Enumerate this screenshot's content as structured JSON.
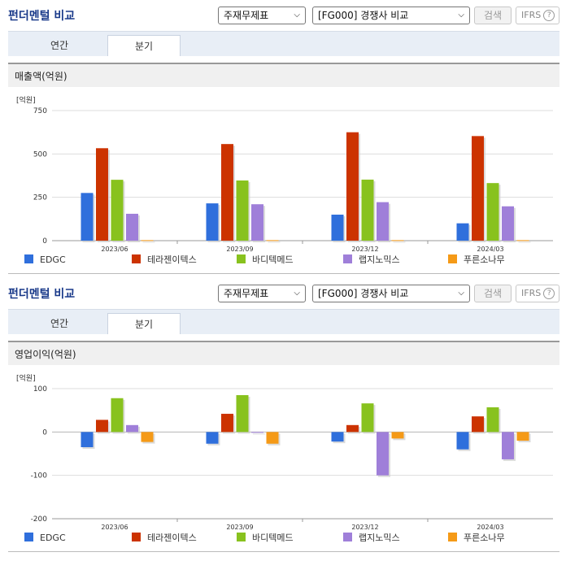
{
  "header": {
    "title": "펀더멘털 비교",
    "select_1": "주재무제표",
    "select_2": "[FG000] 경쟁사 비교",
    "search_button": "검색",
    "ifrs_label": "IFRS",
    "help_icon": "?"
  },
  "tabs": [
    "연간",
    "분기"
  ],
  "active_tab": "분기",
  "colors": {
    "EDGC": "#2f6fdc",
    "테라젠이텍스": "#cc3300",
    "바디텍메드": "#88c21e",
    "랩지노믹스": "#9f7fd9",
    "푸른소나무": "#f59a17"
  },
  "chart_data": [
    {
      "type": "bar",
      "title": "매출액(억원)",
      "unit_label": "[억원]",
      "categories": [
        "2023/06",
        "2023/09",
        "2023/12",
        "2024/03"
      ],
      "ylim": [
        0,
        750
      ],
      "yticks": [
        0,
        250,
        500,
        750
      ],
      "grid": true,
      "legend_position": "bottom",
      "series": [
        {
          "name": "EDGC",
          "values": [
            275,
            215,
            150,
            100
          ]
        },
        {
          "name": "테라젠이텍스",
          "values": [
            533,
            557,
            625,
            603
          ]
        },
        {
          "name": "바디텍메드",
          "values": [
            351,
            347,
            352,
            332
          ]
        },
        {
          "name": "랩지노믹스",
          "values": [
            155,
            210,
            222,
            198
          ]
        },
        {
          "name": "푸른소나무",
          "values": [
            3,
            3,
            3,
            3
          ]
        }
      ]
    },
    {
      "type": "bar",
      "title": "영업이익(억원)",
      "unit_label": "[억원]",
      "categories": [
        "2023/06",
        "2023/09",
        "2023/12",
        "2024/03"
      ],
      "ylim": [
        -200,
        100
      ],
      "yticks": [
        -200,
        -100,
        0,
        100
      ],
      "grid": true,
      "legend_position": "bottom",
      "series": [
        {
          "name": "EDGC",
          "values": [
            -35,
            -27,
            -22,
            -40
          ]
        },
        {
          "name": "테라젠이텍스",
          "values": [
            28,
            42,
            16,
            36
          ]
        },
        {
          "name": "바디텍메드",
          "values": [
            78,
            85,
            66,
            57
          ]
        },
        {
          "name": "랩지노믹스",
          "values": [
            16,
            0,
            -100,
            -63
          ]
        },
        {
          "name": "푸른소나무",
          "values": [
            -23,
            -27,
            -15,
            -20
          ]
        }
      ]
    }
  ]
}
